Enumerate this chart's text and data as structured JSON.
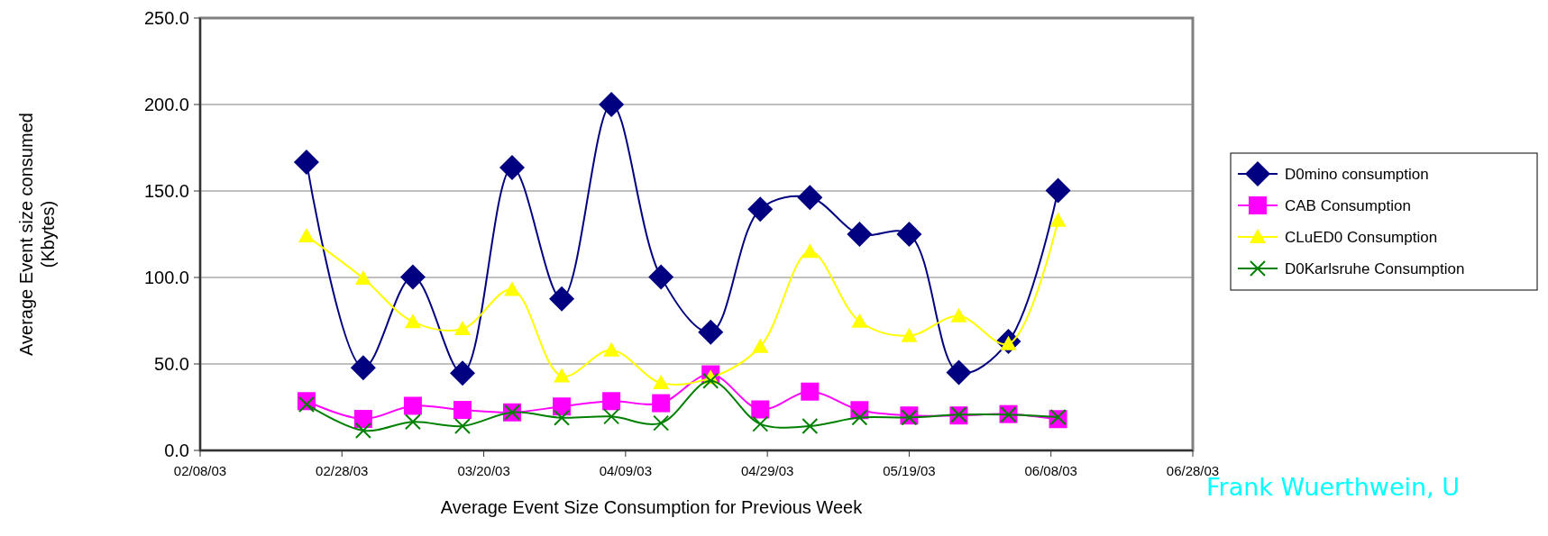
{
  "chart_data": {
    "type": "line",
    "xlabel": "Average Event Size Consumption for Previous Week",
    "ylabel": "Average Event size consumed (Kbytes)",
    "x": [
      "2003-02-23",
      "2003-03-03",
      "2003-03-10",
      "2003-03-17",
      "2003-03-24",
      "2003-03-31",
      "2003-04-07",
      "2003-04-14",
      "2003-04-21",
      "2003-04-28",
      "2003-05-05",
      "2003-05-12",
      "2003-05-19",
      "2003-05-26",
      "2003-06-02",
      "2003-06-09"
    ],
    "series": [
      {
        "name": "D0mino consumption",
        "color": "#000080",
        "marker": "diamond",
        "values": [
          166.7,
          47.8,
          100.2,
          44.7,
          163.6,
          87.6,
          200,
          100.2,
          68.4,
          139.5,
          146.2,
          125,
          125,
          45,
          63,
          150.3
        ]
      },
      {
        "name": "CAB Consumption",
        "color": "#ff00ff",
        "marker": "square",
        "values": [
          28.5,
          18.2,
          25.8,
          23.4,
          22,
          25.4,
          28.5,
          27.3,
          44,
          23.7,
          34,
          23.3,
          20.2,
          20.2,
          21,
          18.1
        ]
      },
      {
        "name": "CLuED0 Consumption",
        "color": "#ffff00",
        "marker": "triangle",
        "values": [
          124,
          99.5,
          74.4,
          70.3,
          93,
          43,
          58,
          39,
          42,
          60,
          115,
          74.6,
          66.3,
          77.7,
          61.6,
          132.9
        ]
      },
      {
        "name": "D0Karlsruhe Consumption",
        "color": "#008000",
        "marker": "cross",
        "values": [
          26.6,
          11.5,
          16.5,
          14.1,
          22,
          18.9,
          19.6,
          15.8,
          40.2,
          15.3,
          14.1,
          19,
          19,
          20.7,
          20.7,
          19.3
        ]
      }
    ],
    "xlim": [
      "2003-02-08",
      "2003-06-28"
    ],
    "xticks": [
      {
        "value": "2003-02-08",
        "label": "02/08/03"
      },
      {
        "value": "2003-02-28",
        "label": "02/28/03"
      },
      {
        "value": "2003-03-20",
        "label": "03/20/03"
      },
      {
        "value": "2003-04-09",
        "label": "04/09/03"
      },
      {
        "value": "2003-04-29",
        "label": "04/29/03"
      },
      {
        "value": "2003-05-19",
        "label": "05/19/03"
      },
      {
        "value": "2003-06-08",
        "label": "06/08/03"
      },
      {
        "value": "2003-06-28",
        "label": "06/28/03"
      }
    ],
    "ylim": [
      0,
      250
    ],
    "yticks": [
      {
        "value": 0,
        "label": "0.0"
      },
      {
        "value": 50,
        "label": "50.0"
      },
      {
        "value": 100,
        "label": "100.0"
      },
      {
        "value": 150,
        "label": "150.0"
      },
      {
        "value": 200,
        "label": "200.0"
      },
      {
        "value": 250,
        "label": "250.0"
      }
    ],
    "grid": "y",
    "legend": "right",
    "annotations": [
      "Frank Wuerthwein, U"
    ]
  }
}
